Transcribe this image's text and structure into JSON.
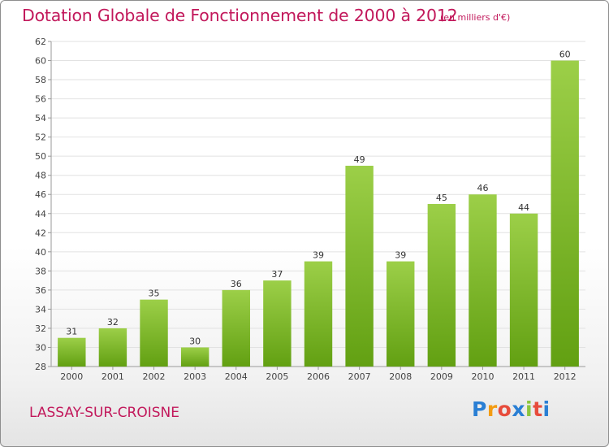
{
  "header": {
    "title": "Dotation Globale de Fonctionnement de 2000 à 2012",
    "unit": "(en milliers d'€)"
  },
  "footer": {
    "commune": "LASSAY-SUR-CROISNE",
    "logo_letters": [
      "P",
      "r",
      "o",
      "x",
      "i",
      "t",
      "i"
    ],
    "logo_colors": [
      "#2a7fd4",
      "#f39c12",
      "#e74c3c",
      "#2a7fd4",
      "#8cc63f",
      "#e74c3c",
      "#2a7fd4"
    ]
  },
  "chart_data": {
    "type": "bar",
    "title": "Dotation Globale de Fonctionnement de 2000 à 2012",
    "subtitle": "(en milliers d'€)",
    "categories": [
      "2000",
      "2001",
      "2002",
      "2003",
      "2004",
      "2005",
      "2006",
      "2007",
      "2008",
      "2009",
      "2010",
      "2011",
      "2012"
    ],
    "values": [
      31,
      32,
      35,
      30,
      36,
      37,
      39,
      49,
      39,
      45,
      46,
      44,
      60
    ],
    "ylim": [
      28,
      62
    ],
    "yticks": [
      28,
      30,
      32,
      34,
      36,
      38,
      40,
      42,
      44,
      46,
      48,
      50,
      52,
      54,
      56,
      58,
      60,
      62
    ],
    "grid": true,
    "bar_color_top": "#9ccf48",
    "bar_color_bottom": "#62a012",
    "axis_color": "#9a9a9a",
    "grid_color": "#e2e2e2"
  }
}
